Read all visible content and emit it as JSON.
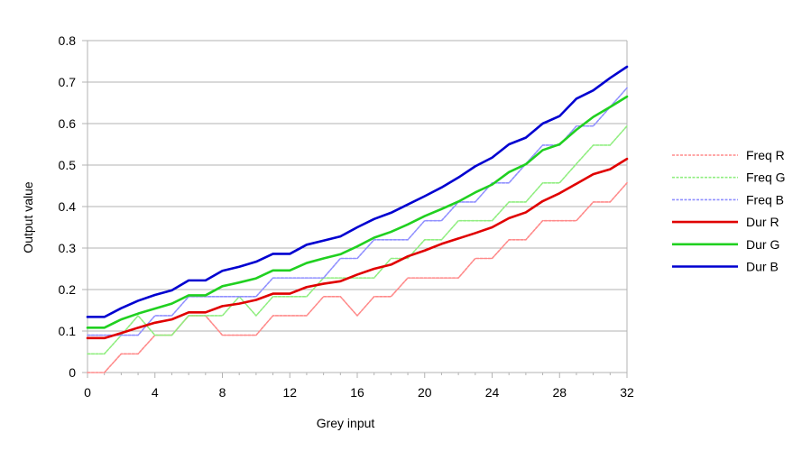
{
  "chart_data": {
    "type": "line",
    "title": "",
    "xlabel": "Grey input",
    "ylabel": "Output value",
    "xlim": [
      0,
      32
    ],
    "ylim": [
      0,
      0.8
    ],
    "xticks": [
      0,
      4,
      8,
      12,
      16,
      20,
      24,
      28,
      32
    ],
    "xtick_labels": [
      "0",
      "4",
      "8",
      "12",
      "16",
      "20",
      "24",
      "28",
      "32"
    ],
    "yticks": [
      0,
      0.1,
      0.2,
      0.3,
      0.4,
      0.5,
      0.6,
      0.7,
      0.8
    ],
    "ytick_labels": [
      "0",
      "0.1",
      "0.2",
      "0.3",
      "0.4",
      "0.5",
      "0.6",
      "0.7",
      "0.8"
    ],
    "grid": "horizontal",
    "legend_position": "right",
    "x": [
      0,
      1,
      2,
      3,
      4,
      5,
      6,
      7,
      8,
      9,
      10,
      11,
      12,
      13,
      14,
      15,
      16,
      17,
      18,
      19,
      20,
      21,
      22,
      23,
      24,
      25,
      26,
      27,
      28,
      29,
      30,
      31,
      32
    ],
    "series": [
      {
        "name": "Freq R",
        "color": "#ff8a8a",
        "style": "thin",
        "values": [
          0,
          0,
          0.045,
          0.045,
          0.09,
          0.09,
          0.137,
          0.137,
          0.09,
          0.09,
          0.09,
          0.137,
          0.137,
          0.137,
          0.183,
          0.183,
          0.137,
          0.183,
          0.183,
          0.228,
          0.228,
          0.228,
          0.228,
          0.275,
          0.275,
          0.32,
          0.32,
          0.366,
          0.366,
          0.366,
          0.411,
          0.411,
          0.457
        ]
      },
      {
        "name": "Freq G",
        "color": "#90ee80",
        "style": "thin",
        "values": [
          0.045,
          0.045,
          0.09,
          0.137,
          0.09,
          0.09,
          0.137,
          0.137,
          0.137,
          0.183,
          0.137,
          0.183,
          0.183,
          0.183,
          0.228,
          0.228,
          0.228,
          0.228,
          0.275,
          0.275,
          0.32,
          0.32,
          0.366,
          0.366,
          0.366,
          0.411,
          0.411,
          0.457,
          0.457,
          0.503,
          0.548,
          0.548,
          0.594
        ]
      },
      {
        "name": "Freq B",
        "color": "#9090ff",
        "style": "thin",
        "values": [
          0.09,
          0.09,
          0.09,
          0.09,
          0.137,
          0.137,
          0.183,
          0.183,
          0.183,
          0.183,
          0.183,
          0.228,
          0.228,
          0.228,
          0.228,
          0.275,
          0.275,
          0.32,
          0.32,
          0.32,
          0.366,
          0.366,
          0.411,
          0.411,
          0.457,
          0.457,
          0.503,
          0.548,
          0.548,
          0.594,
          0.594,
          0.64,
          0.686
        ]
      },
      {
        "name": "Dur R",
        "color": "#e00000",
        "style": "thick",
        "values": [
          0.083,
          0.083,
          0.095,
          0.108,
          0.12,
          0.128,
          0.145,
          0.145,
          0.16,
          0.166,
          0.175,
          0.19,
          0.19,
          0.206,
          0.214,
          0.22,
          0.236,
          0.25,
          0.26,
          0.28,
          0.294,
          0.31,
          0.323,
          0.336,
          0.35,
          0.372,
          0.386,
          0.413,
          0.432,
          0.455,
          0.478,
          0.49,
          0.515
        ]
      },
      {
        "name": "Dur G",
        "color": "#20d020",
        "style": "thick",
        "values": [
          0.108,
          0.108,
          0.128,
          0.142,
          0.154,
          0.166,
          0.186,
          0.186,
          0.208,
          0.217,
          0.227,
          0.246,
          0.246,
          0.264,
          0.275,
          0.285,
          0.304,
          0.325,
          0.339,
          0.357,
          0.377,
          0.394,
          0.412,
          0.434,
          0.453,
          0.483,
          0.502,
          0.536,
          0.55,
          0.585,
          0.616,
          0.64,
          0.665
        ]
      },
      {
        "name": "Dur B",
        "color": "#0000d0",
        "style": "thick",
        "values": [
          0.134,
          0.134,
          0.155,
          0.173,
          0.187,
          0.198,
          0.222,
          0.222,
          0.245,
          0.255,
          0.267,
          0.286,
          0.286,
          0.308,
          0.318,
          0.328,
          0.35,
          0.37,
          0.385,
          0.405,
          0.425,
          0.446,
          0.47,
          0.497,
          0.518,
          0.55,
          0.566,
          0.6,
          0.618,
          0.66,
          0.68,
          0.71,
          0.737
        ]
      }
    ]
  }
}
